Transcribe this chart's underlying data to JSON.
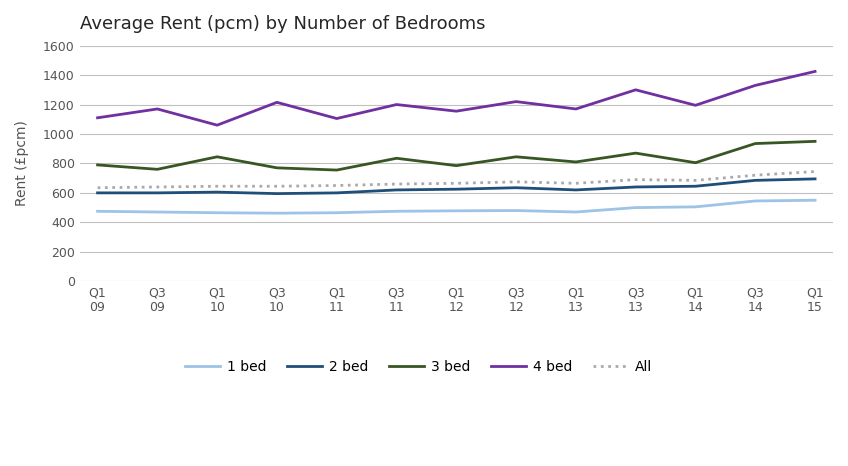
{
  "title": "Average Rent (pcm) by Number of Bedrooms",
  "ylabel": "Rent (£pcm)",
  "x_labels": [
    "Q1\n09",
    "Q3\n09",
    "Q1\n10",
    "Q3\n10",
    "Q1\n11",
    "Q3\n11",
    "Q1\n12",
    "Q3\n12",
    "Q1\n13",
    "Q3\n13",
    "Q1\n14",
    "Q3\n14",
    "Q1\n15"
  ],
  "bed1": [
    475,
    470,
    465,
    462,
    465,
    475,
    478,
    480,
    470,
    500,
    505,
    545,
    550
  ],
  "bed2": [
    600,
    600,
    605,
    595,
    600,
    620,
    625,
    635,
    620,
    640,
    645,
    685,
    695
  ],
  "bed3": [
    790,
    760,
    845,
    770,
    755,
    835,
    785,
    845,
    810,
    870,
    805,
    935,
    950
  ],
  "bed4": [
    1110,
    1170,
    1060,
    1215,
    1105,
    1200,
    1155,
    1220,
    1170,
    1300,
    1195,
    1330,
    1425
  ],
  "all": [
    635,
    640,
    645,
    645,
    650,
    660,
    665,
    675,
    665,
    690,
    685,
    720,
    745
  ],
  "color_bed1": "#9DC3E6",
  "color_bed2": "#1F4E79",
  "color_bed3": "#375623",
  "color_bed4": "#7030A0",
  "color_all": "#AAAAAA",
  "ylim": [
    0,
    1600
  ],
  "yticks": [
    0,
    200,
    400,
    600,
    800,
    1000,
    1200,
    1400,
    1600
  ],
  "bg_color": "#FFFFFF",
  "grid_color": "#C0C0C0",
  "title_color": "#262626",
  "legend_labels": [
    "1 bed",
    "2 bed",
    "3 bed",
    "4 bed",
    "All"
  ]
}
